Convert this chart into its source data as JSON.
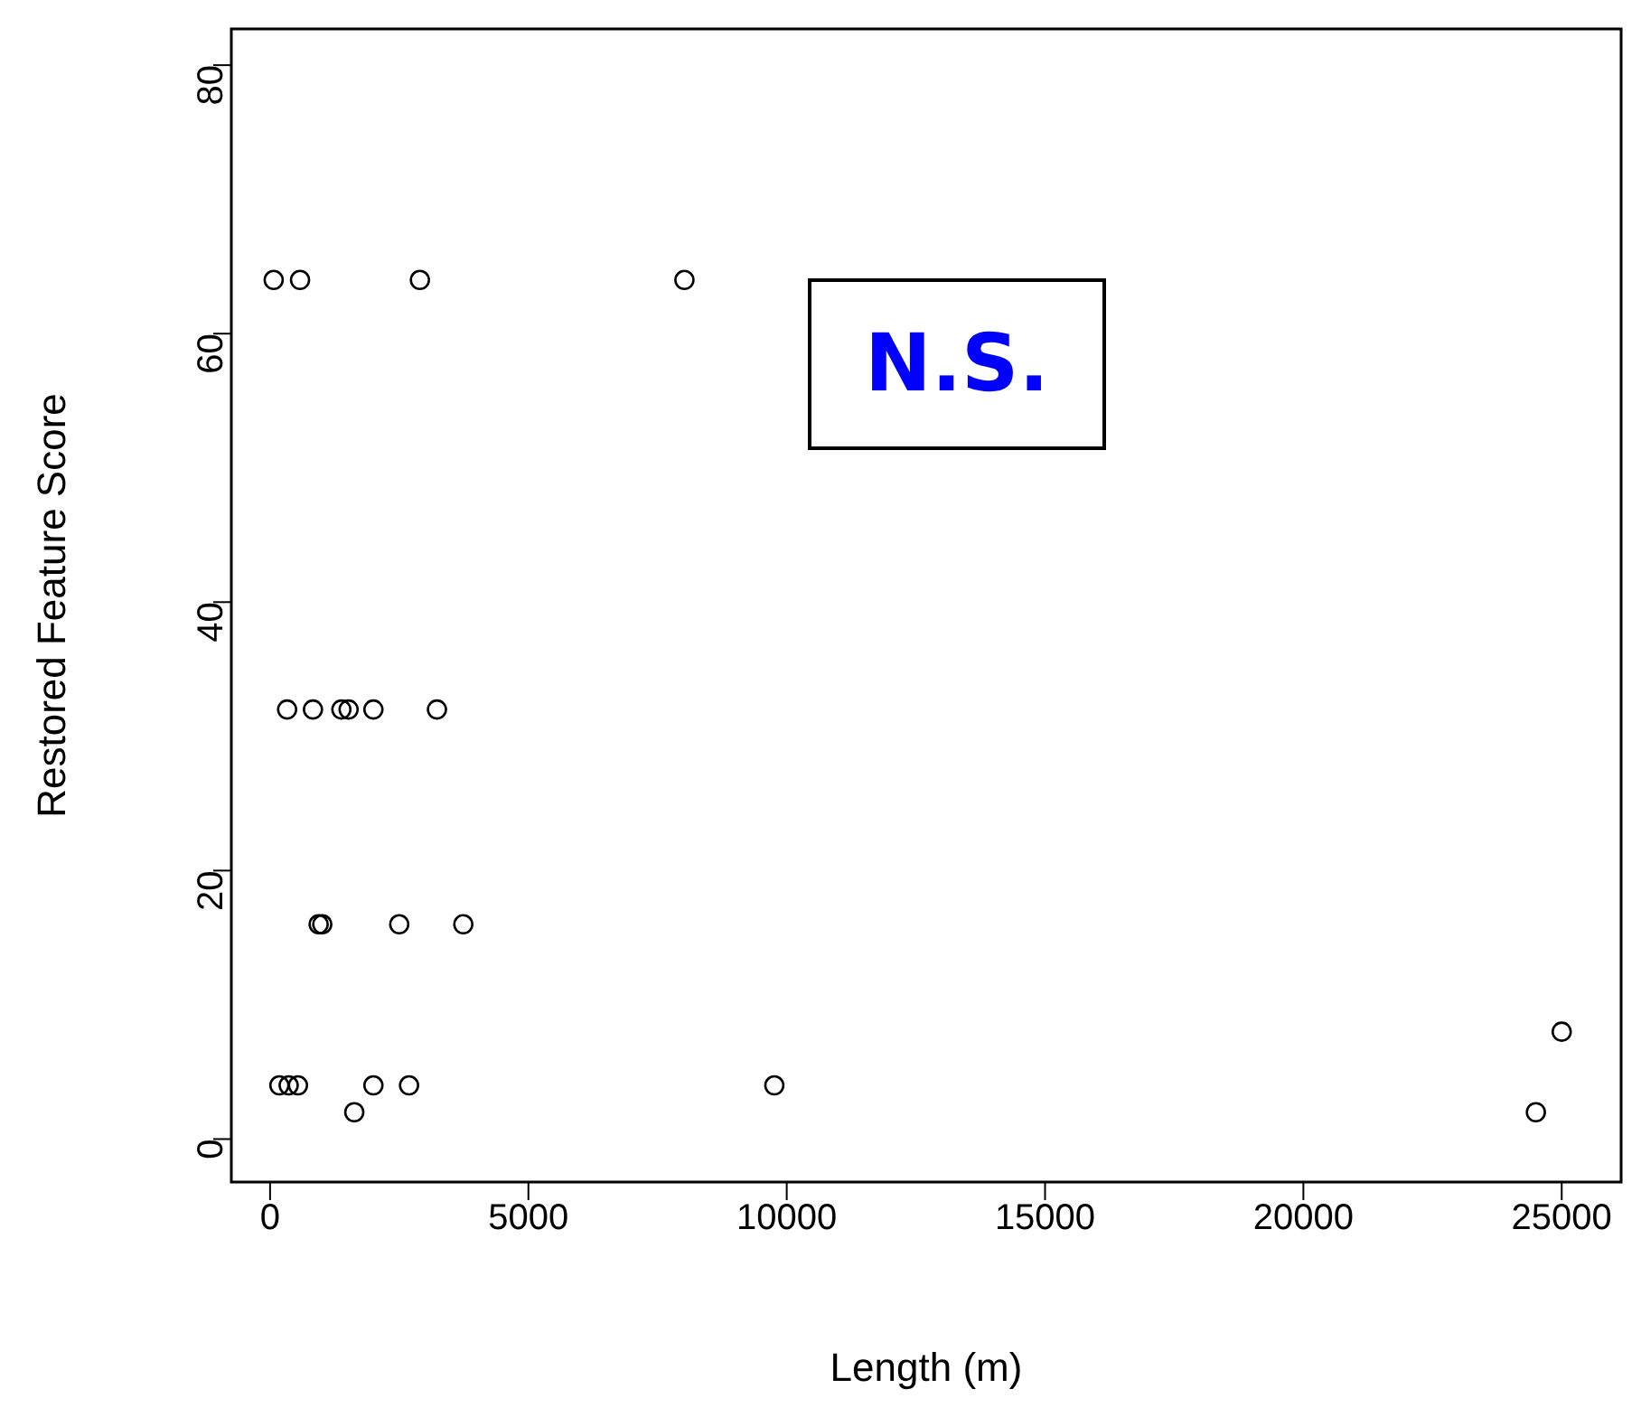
{
  "chart_data": {
    "type": "scatter",
    "xlabel": "Length (m)",
    "ylabel": "Restored Feature Score",
    "x": [
      70,
      580,
      2900,
      8020,
      330,
      830,
      1380,
      1520,
      2000,
      3230,
      940,
      1010,
      2500,
      3740,
      180,
      360,
      540,
      2000,
      2690,
      9760,
      1630,
      24500,
      25000
    ],
    "series": [
      {
        "color": "#000000",
        "values": [
          64,
          64,
          64,
          64,
          32,
          32,
          32,
          32,
          32,
          32,
          16,
          16,
          16,
          16,
          4,
          4,
          4,
          4,
          4,
          4,
          2,
          2,
          8
        ]
      }
    ],
    "xlim": [
      -750,
      26150
    ],
    "ylim": [
      -3.2,
      82.7
    ],
    "xticks": [
      0,
      5000,
      10000,
      15000,
      20000,
      25000
    ],
    "yticks": [
      0,
      20,
      40,
      60,
      80
    ],
    "marker": "circle",
    "grid": false,
    "annotations": [
      "N.S."
    ]
  }
}
